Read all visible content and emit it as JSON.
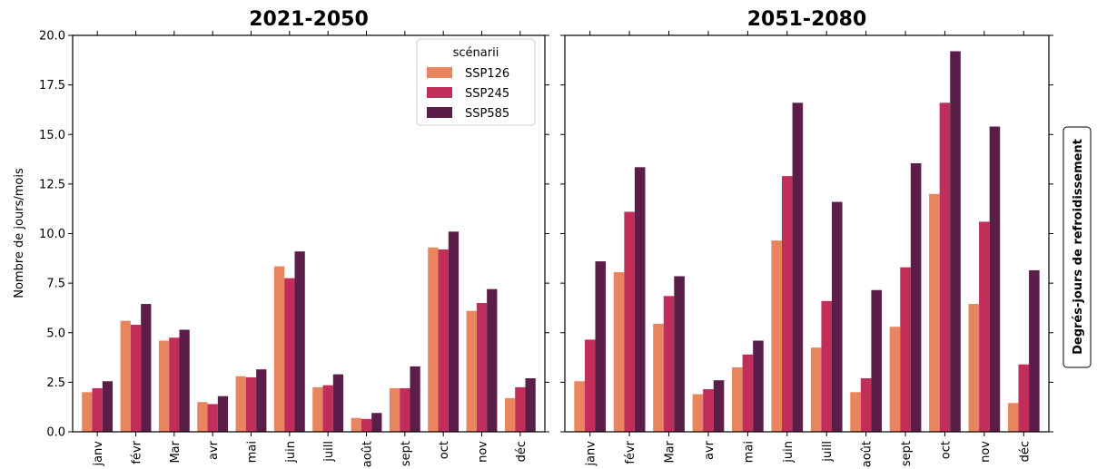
{
  "chart_data": {
    "type": "bar",
    "ylabel": "Nombre de jours/mois",
    "side_label": "Degrés-jours de refroidissement",
    "ylim": [
      0,
      20
    ],
    "yticks": [
      "0.0",
      "2.5",
      "5.0",
      "7.5",
      "10.0",
      "12.5",
      "15.0",
      "17.5",
      "20.0"
    ],
    "ytick_values": [
      0,
      2.5,
      5,
      7.5,
      10,
      12.5,
      15,
      17.5,
      20
    ],
    "categories": [
      "janv",
      "févr",
      "Mar",
      "avr",
      "mai",
      "juin",
      "juill",
      "août",
      "sept",
      "oct",
      "nov",
      "déc"
    ],
    "legend": {
      "title": "scénarii",
      "placement": "top-right of left panel"
    },
    "series_meta": [
      {
        "name": "SSP126",
        "color": "#e8845e"
      },
      {
        "name": "SSP245",
        "color": "#c22e5a"
      },
      {
        "name": "SSP585",
        "color": "#5a1e48"
      }
    ],
    "panels": [
      {
        "title": "2021-2050",
        "series": [
          {
            "name": "SSP126",
            "values": [
              2.0,
              5.6,
              4.6,
              1.5,
              2.8,
              8.35,
              2.25,
              0.7,
              2.2,
              9.3,
              6.1,
              1.7
            ]
          },
          {
            "name": "SSP245",
            "values": [
              2.2,
              5.4,
              4.75,
              1.4,
              2.75,
              7.75,
              2.35,
              0.65,
              2.2,
              9.2,
              6.5,
              2.25
            ]
          },
          {
            "name": "SSP585",
            "values": [
              2.55,
              6.45,
              5.15,
              1.8,
              3.15,
              9.1,
              2.9,
              0.95,
              3.3,
              10.1,
              7.2,
              2.7
            ]
          }
        ]
      },
      {
        "title": "2051-2080",
        "series": [
          {
            "name": "SSP126",
            "values": [
              2.55,
              8.05,
              5.45,
              1.9,
              3.25,
              9.65,
              4.25,
              2.0,
              5.3,
              12.0,
              6.45,
              1.45
            ]
          },
          {
            "name": "SSP245",
            "values": [
              4.65,
              11.1,
              6.85,
              2.15,
              3.9,
              12.9,
              6.6,
              2.7,
              8.3,
              16.6,
              10.6,
              3.4
            ]
          },
          {
            "name": "SSP585",
            "values": [
              8.6,
              13.35,
              7.85,
              2.6,
              4.6,
              16.6,
              11.6,
              7.15,
              13.55,
              19.2,
              15.4,
              8.15
            ]
          }
        ]
      }
    ]
  }
}
